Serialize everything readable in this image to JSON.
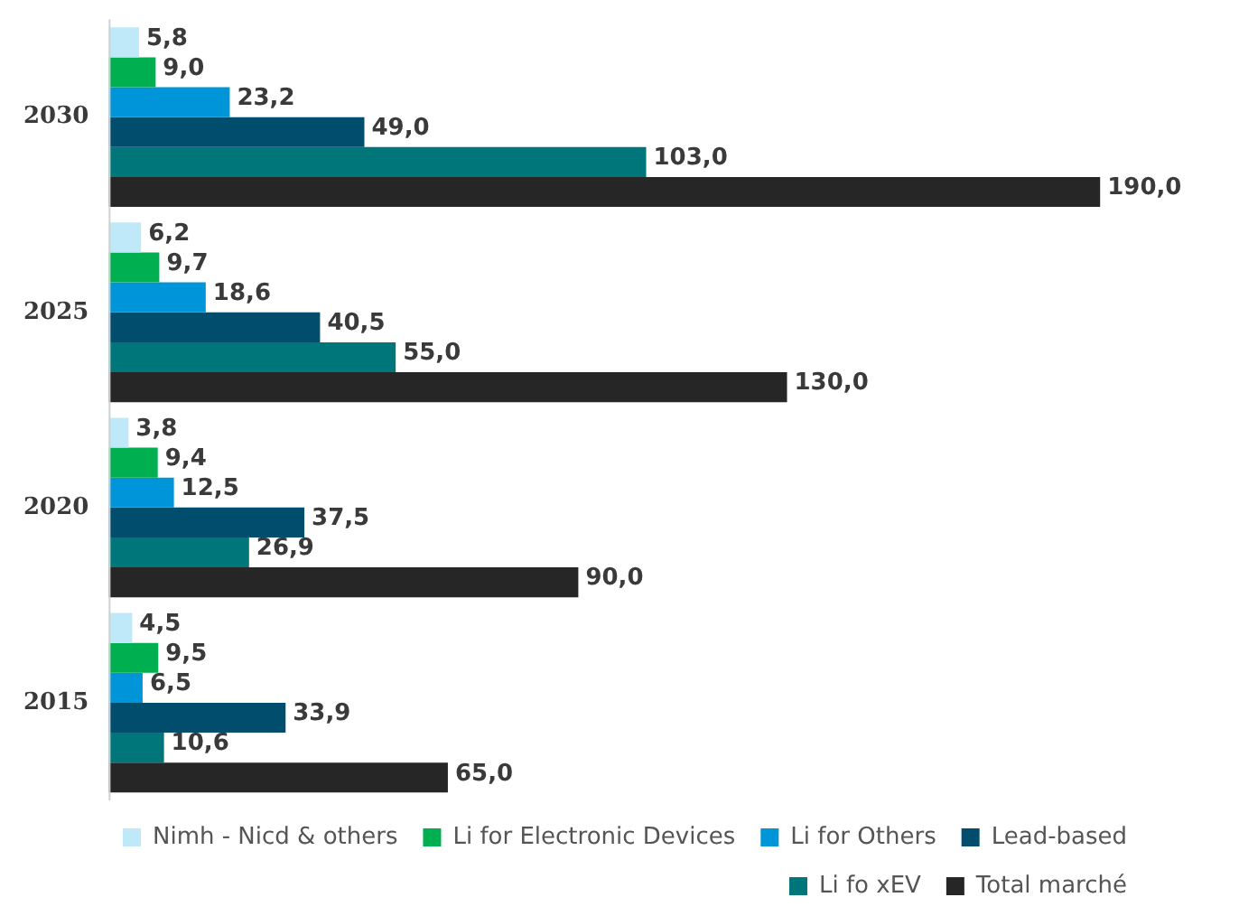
{
  "chart_data": {
    "type": "bar",
    "orientation": "horizontal",
    "categories": [
      "2030",
      "2025",
      "2020",
      "2015"
    ],
    "legend": "bottom",
    "series": [
      {
        "name": "Nimh - Nicd & others",
        "color": "#bfe9f8",
        "values": [
          5.8,
          6.2,
          3.8,
          4.5
        ],
        "value_labels": [
          "5,8",
          "6,2",
          "3,8",
          "4,5"
        ]
      },
      {
        "name": "Li for Electronic Devices",
        "color": "#00b050",
        "values": [
          9.0,
          9.7,
          9.4,
          9.5
        ],
        "value_labels": [
          "9,0",
          "9,7",
          "9,4",
          "9,5"
        ]
      },
      {
        "name": "Li for Others",
        "color": "#0095d8",
        "values": [
          23.2,
          18.6,
          12.5,
          6.5
        ],
        "value_labels": [
          "23,2",
          "18,6",
          "12,5",
          "6,5"
        ]
      },
      {
        "name": "Lead-based",
        "color": "#004d6e",
        "values": [
          49.0,
          40.5,
          37.5,
          33.9
        ],
        "value_labels": [
          "49,0",
          "40,5",
          "37,5",
          "33,9"
        ]
      },
      {
        "name": "Li fo xEV",
        "color": "#00767a",
        "values": [
          103.0,
          55.0,
          26.9,
          10.6
        ],
        "value_labels": [
          "103,0",
          "55,0",
          "26,9",
          "10,6"
        ]
      },
      {
        "name": "Total marché",
        "color": "#262626",
        "values": [
          190.0,
          130.0,
          90.0,
          65.0
        ],
        "value_labels": [
          "190,0",
          "130,0",
          "90,0",
          "65,0"
        ]
      }
    ]
  }
}
